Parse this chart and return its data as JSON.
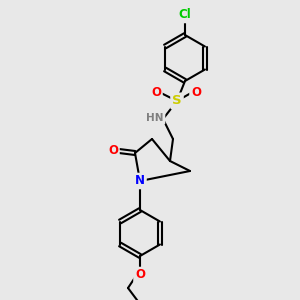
{
  "bg_color": "#e8e8e8",
  "bond_color": "#000000",
  "bond_width": 1.5,
  "atom_colors": {
    "C": "#000000",
    "H": "#7f7f7f",
    "N": "#0000ff",
    "O": "#ff0000",
    "S": "#cccc00",
    "Cl": "#00cc00"
  },
  "font_size": 7.5
}
